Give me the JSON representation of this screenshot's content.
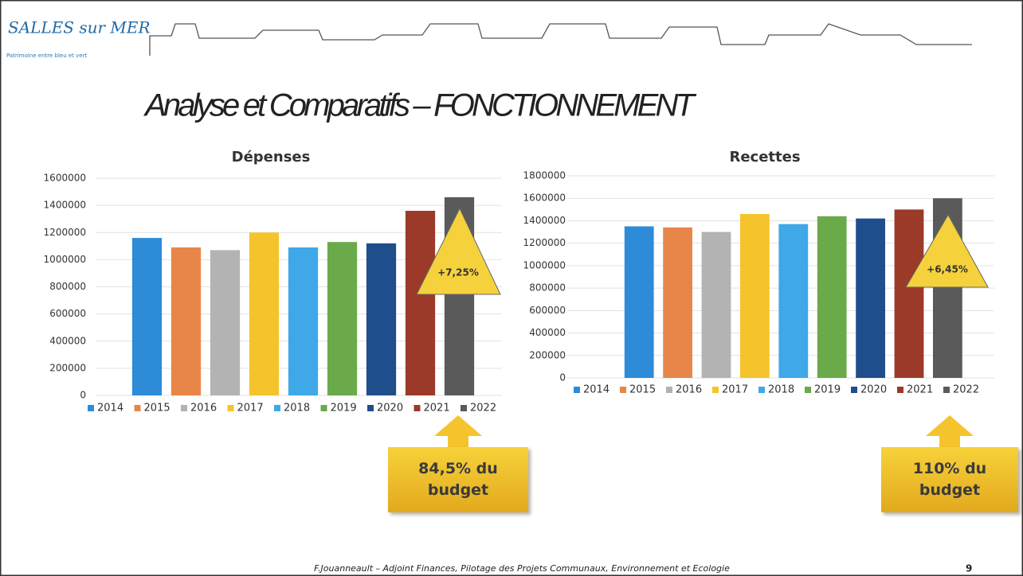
{
  "logo": {
    "name": "SALLES sur MER",
    "tagline": "Patrimoine entre bleu et vert"
  },
  "title": "Analyse et Comparatifs – FONCTIONNEMENT",
  "footer": "F.Jouanneault – Adjoint Finances, Pilotage des Projets Communaux, Environnement et Ecologie",
  "page_number": "9",
  "chart_data": [
    {
      "type": "bar",
      "title": "Dépenses",
      "ylim": [
        0,
        1600000
      ],
      "yticks": [
        0,
        200000,
        400000,
        600000,
        800000,
        1000000,
        1200000,
        1400000,
        1600000
      ],
      "grid": true,
      "legend": "bottom",
      "series": [
        {
          "name": "2014",
          "color": "#2e8bd8",
          "values": [
            1160000
          ]
        },
        {
          "name": "2015",
          "color": "#e8864a",
          "values": [
            1090000
          ]
        },
        {
          "name": "2016",
          "color": "#b3b3b3",
          "values": [
            1070000
          ]
        },
        {
          "name": "2017",
          "color": "#f5c42c",
          "values": [
            1200000
          ]
        },
        {
          "name": "2018",
          "color": "#3ea8e8",
          "values": [
            1090000
          ]
        },
        {
          "name": "2019",
          "color": "#6aaa4a",
          "values": [
            1130000
          ]
        },
        {
          "name": "2020",
          "color": "#1f4e8c",
          "values": [
            1120000
          ]
        },
        {
          "name": "2021",
          "color": "#9c3a2a",
          "values": [
            1360000
          ]
        },
        {
          "name": "2022",
          "color": "#5a5a5a",
          "values": [
            1460000
          ]
        }
      ],
      "growth_label": "+7,25%",
      "budget_note": "84,5% du budget"
    },
    {
      "type": "bar",
      "title": "Recettes",
      "ylim": [
        0,
        1800000
      ],
      "yticks": [
        0,
        200000,
        400000,
        600000,
        800000,
        1000000,
        1200000,
        1400000,
        1600000,
        1800000
      ],
      "grid": true,
      "legend": "bottom",
      "series": [
        {
          "name": "2014",
          "color": "#2e8bd8",
          "values": [
            1350000
          ]
        },
        {
          "name": "2015",
          "color": "#e8864a",
          "values": [
            1340000
          ]
        },
        {
          "name": "2016",
          "color": "#b3b3b3",
          "values": [
            1300000
          ]
        },
        {
          "name": "2017",
          "color": "#f5c42c",
          "values": [
            1460000
          ]
        },
        {
          "name": "2018",
          "color": "#3ea8e8",
          "values": [
            1370000
          ]
        },
        {
          "name": "2019",
          "color": "#6aaa4a",
          "values": [
            1440000
          ]
        },
        {
          "name": "2020",
          "color": "#1f4e8c",
          "values": [
            1420000
          ]
        },
        {
          "name": "2021",
          "color": "#9c3a2a",
          "values": [
            1500000
          ]
        },
        {
          "name": "2022",
          "color": "#5a5a5a",
          "values": [
            1600000
          ]
        }
      ],
      "growth_label": "+6,45%",
      "budget_note": "110% du budget"
    }
  ]
}
